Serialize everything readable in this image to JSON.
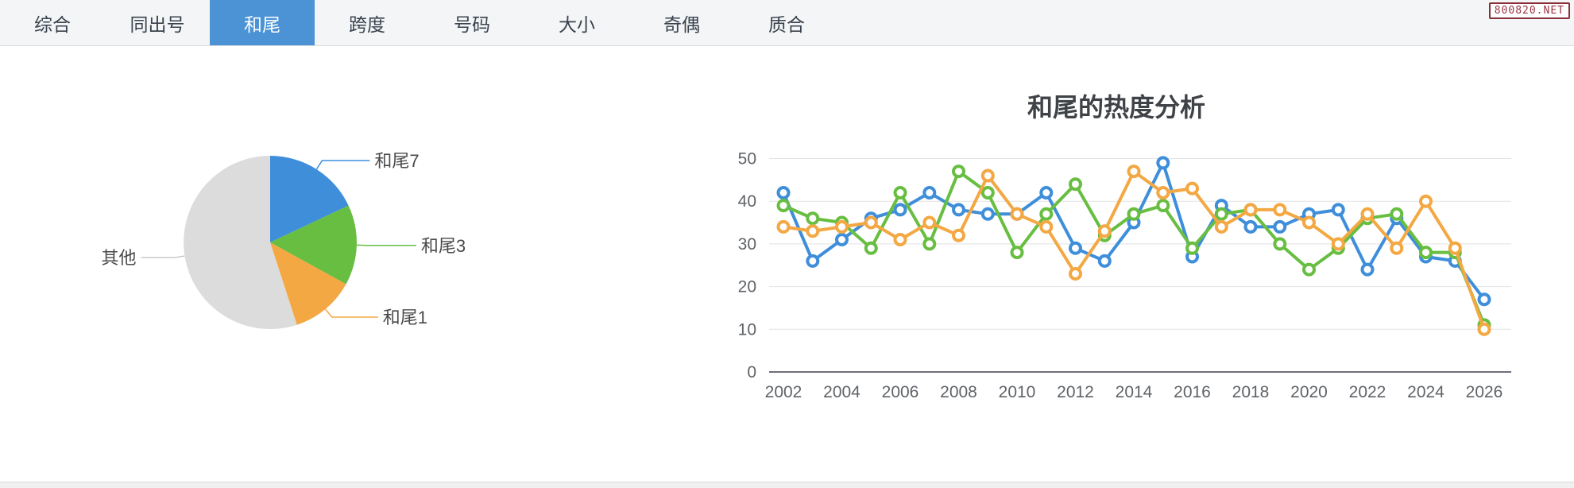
{
  "tabbar": {
    "tabs": [
      {
        "label": "综合",
        "active": false
      },
      {
        "label": "同出号",
        "active": false
      },
      {
        "label": "和尾",
        "active": true
      },
      {
        "label": "跨度",
        "active": false
      },
      {
        "label": "号码",
        "active": false
      },
      {
        "label": "大小",
        "active": false
      },
      {
        "label": "奇偶",
        "active": false
      },
      {
        "label": "质合",
        "active": false
      }
    ]
  },
  "watermark": {
    "text": "800820.NET"
  },
  "colors": {
    "blue": "#3E8EDA",
    "green": "#67BE41",
    "orange": "#F3A843",
    "gray": "#DCDCDC",
    "active_tab": "#4B93D5",
    "grid": "#E2E2E2",
    "axis": "#6E7079",
    "axis_label": "#5F6368",
    "title_text": "#3F4347"
  },
  "chart_data": [
    {
      "type": "pie",
      "name": "hewei-distribution-pie",
      "legend": "none",
      "labels_outside": true,
      "slices": [
        {
          "label": "和尾7",
          "value": 18,
          "color": "#3E8EDA"
        },
        {
          "label": "和尾3",
          "value": 15,
          "color": "#67BE41"
        },
        {
          "label": "和尾1",
          "value": 12,
          "color": "#F3A843"
        },
        {
          "label": "其他",
          "value": 55,
          "color": "#DCDCDC"
        }
      ],
      "value_unit": "percent-estimated"
    },
    {
      "type": "line",
      "title": "和尾的热度分析",
      "xlabel": "",
      "ylabel": "",
      "x": [
        2002,
        2003,
        2004,
        2005,
        2006,
        2007,
        2008,
        2009,
        2010,
        2011,
        2012,
        2013,
        2014,
        2015,
        2016,
        2017,
        2018,
        2019,
        2020,
        2021,
        2022,
        2023,
        2024,
        2025,
        2026
      ],
      "xtick_labels": [
        "2002",
        "2004",
        "2006",
        "2008",
        "2010",
        "2012",
        "2014",
        "2016",
        "2018",
        "2020",
        "2022",
        "2024",
        "2026"
      ],
      "ylim": [
        0,
        50
      ],
      "yticks": [
        0,
        10,
        20,
        30,
        40,
        50
      ],
      "grid": "horizontal",
      "legend": "none",
      "marker": "hollow-circle",
      "series": [
        {
          "name": "和尾7",
          "color": "#3E8EDA",
          "values": [
            42,
            26,
            31,
            36,
            38,
            42,
            38,
            37,
            37,
            42,
            29,
            26,
            35,
            49,
            27,
            39,
            34,
            34,
            37,
            38,
            24,
            36,
            27,
            26,
            17
          ]
        },
        {
          "name": "和尾3",
          "color": "#67BE41",
          "values": [
            39,
            36,
            35,
            29,
            42,
            30,
            47,
            42,
            28,
            37,
            44,
            32,
            37,
            39,
            29,
            37,
            38,
            30,
            24,
            29,
            36,
            37,
            28,
            28,
            11
          ]
        },
        {
          "name": "和尾1",
          "color": "#F3A843",
          "values": [
            34,
            33,
            34,
            35,
            31,
            35,
            32,
            46,
            37,
            34,
            23,
            33,
            47,
            42,
            43,
            34,
            38,
            38,
            35,
            30,
            37,
            29,
            40,
            29,
            10
          ]
        }
      ]
    }
  ]
}
